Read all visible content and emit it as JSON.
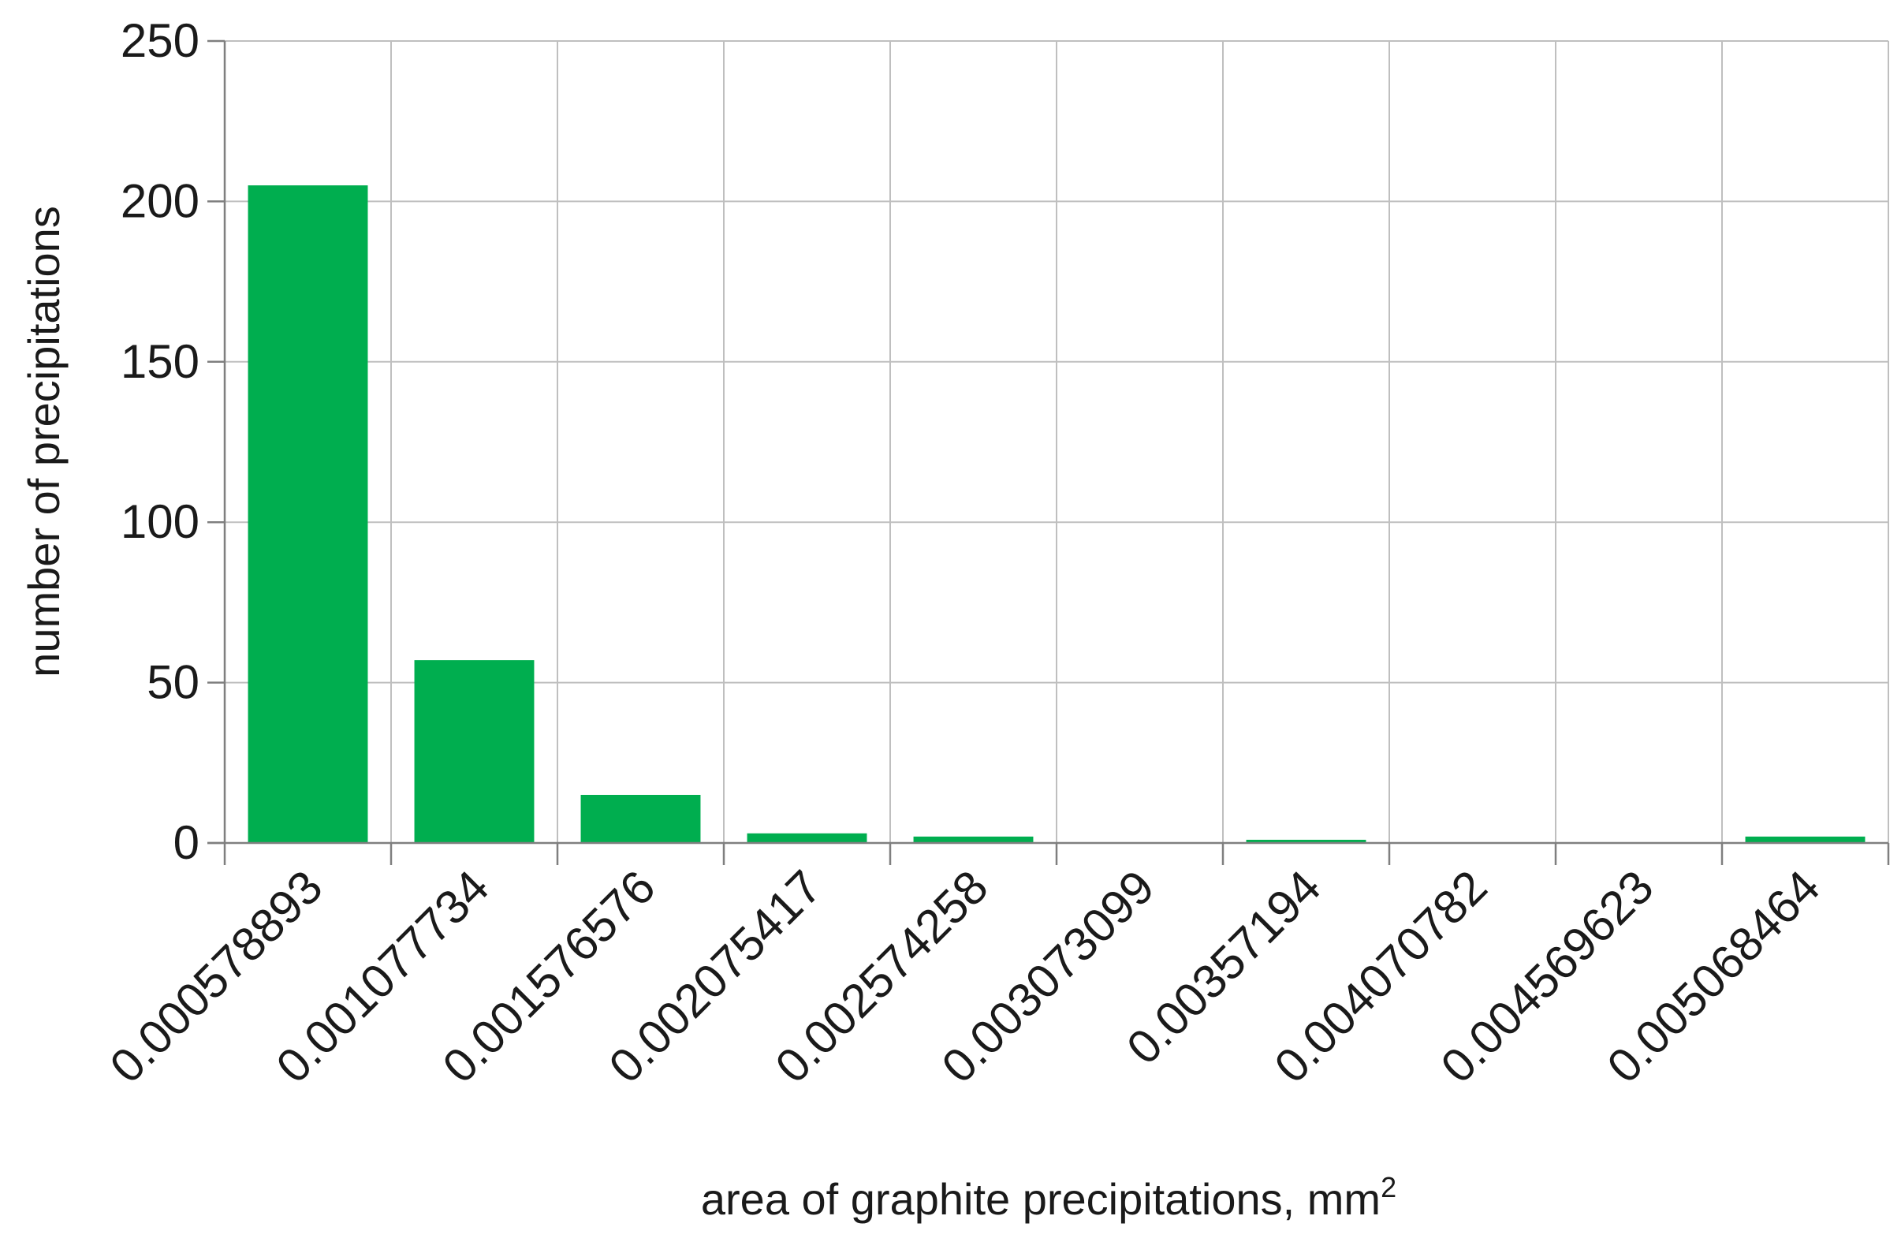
{
  "chart_data": {
    "type": "bar",
    "categories": [
      "0.000578893",
      "0.001077734",
      "0.001576576",
      "0.002075417",
      "0.002574258",
      "0.003073099",
      "0.00357194",
      "0.004070782",
      "0.004569623",
      "0.005068464"
    ],
    "values": [
      205,
      57,
      15,
      3,
      2,
      0,
      1,
      0,
      0,
      2
    ],
    "xlabel": "area of graphite precipitations, mm",
    "xlabel_superscript": "2",
    "ylabel": "number of precipitations",
    "ylim": [
      0,
      250
    ],
    "yticks": [
      "0",
      "50",
      "100",
      "150",
      "200",
      "250"
    ],
    "grid": true,
    "colors": {
      "bar": "#00AE4F",
      "grid": "#BFBFBF",
      "axis": "#7F7F7F"
    }
  }
}
